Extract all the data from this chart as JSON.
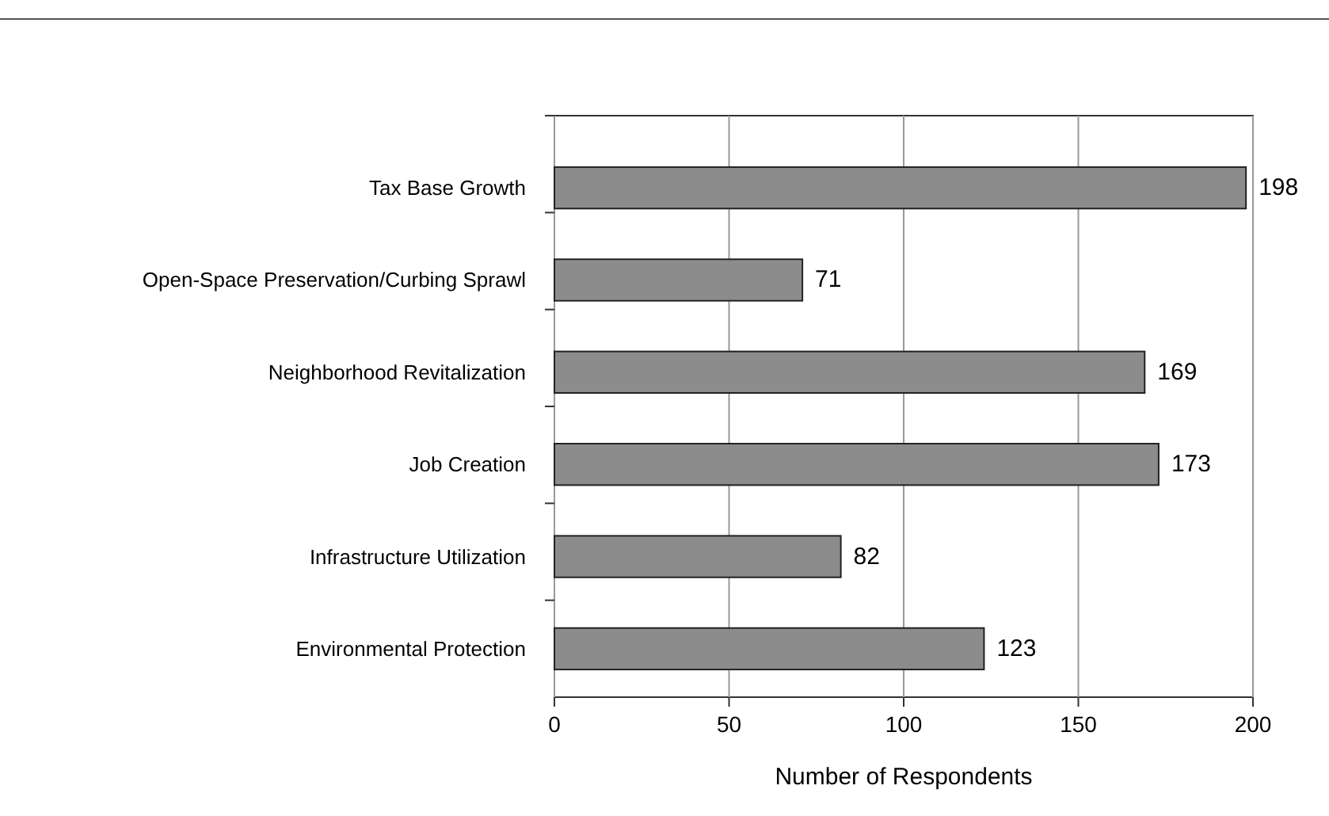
{
  "chart_data": {
    "type": "bar",
    "orientation": "horizontal",
    "categories": [
      "Tax Base Growth",
      "Open-Space Preservation/Curbing Sprawl",
      "Neighborhood Revitalization",
      "Job Creation",
      "Infrastructure Utilization",
      "Environmental Protection"
    ],
    "values": [
      198,
      71,
      169,
      173,
      82,
      123
    ],
    "color": "#8c8c8c",
    "xlim": [
      0,
      200
    ],
    "xticks": [
      0,
      50,
      100,
      150,
      200
    ],
    "grid": "x",
    "data_labels": true,
    "xlabel": "Number of Respondents"
  }
}
